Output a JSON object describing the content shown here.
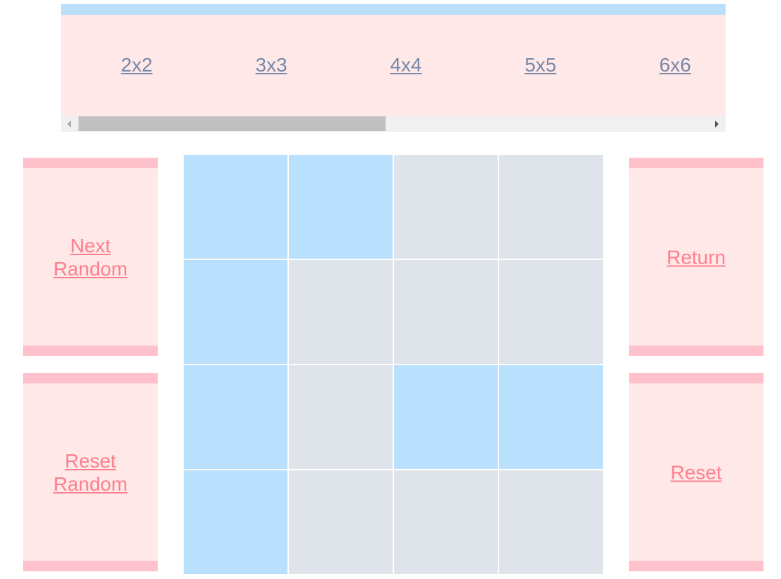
{
  "size_options": [
    {
      "label": "2x2"
    },
    {
      "label": "3x3"
    },
    {
      "label": "4x4"
    },
    {
      "label": "5x5"
    },
    {
      "label": "6x6"
    }
  ],
  "buttons": {
    "next_random": "Next Random",
    "reset_random": "Reset Random",
    "return": "Return",
    "reset": "Reset"
  },
  "board": {
    "size": 4,
    "cells": [
      [
        1,
        1,
        0,
        0
      ],
      [
        1,
        0,
        0,
        0
      ],
      [
        1,
        0,
        1,
        1
      ],
      [
        1,
        0,
        0,
        0
      ]
    ]
  },
  "colors": {
    "cell_on": "#b9e0fd",
    "cell_off": "#dfe3ea",
    "panel_bg": "#ffe8e8",
    "panel_stripe": "#ffc1cc",
    "top_stripe": "#bbdefb",
    "button_text": "#ff7f8e",
    "size_link_text": "#7888a8"
  }
}
